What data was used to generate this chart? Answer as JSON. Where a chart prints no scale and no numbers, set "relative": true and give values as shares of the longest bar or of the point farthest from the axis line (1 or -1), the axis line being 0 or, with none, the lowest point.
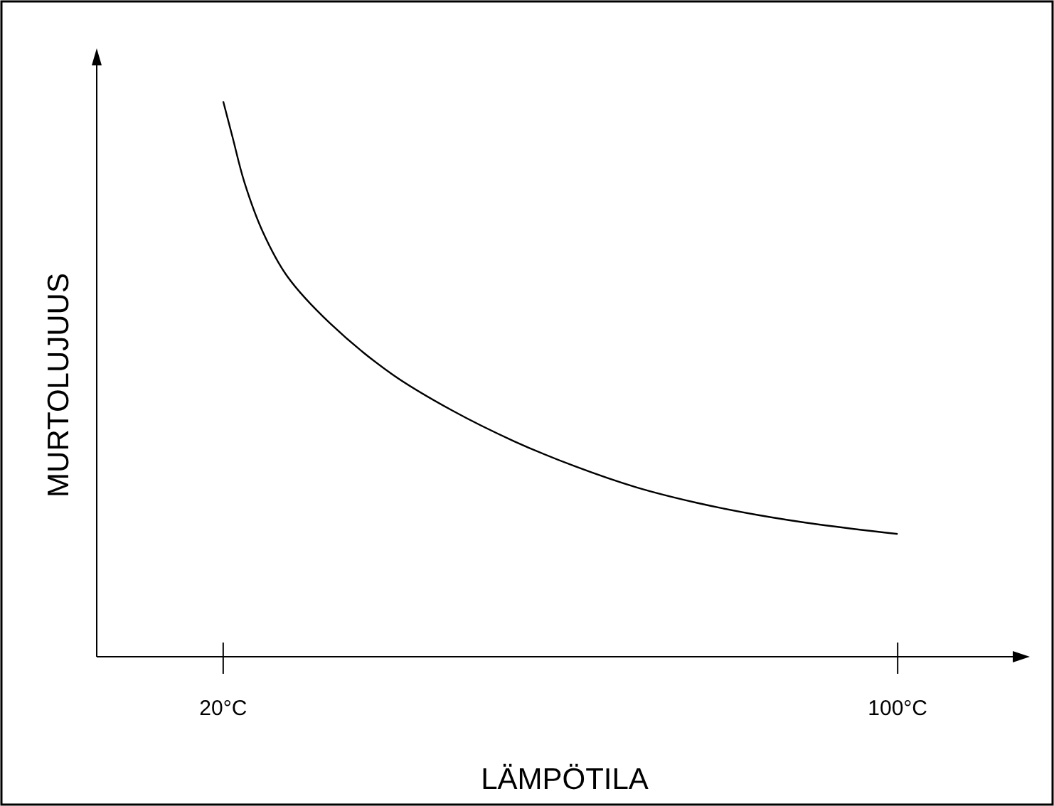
{
  "chart_data": {
    "type": "line",
    "xlabel": "LÄMPÖTILA",
    "ylabel": "MURTOLUJUUS",
    "relative": true,
    "xlim": [
      5,
      115
    ],
    "xticks": [
      {
        "value": 20,
        "label": "20°C"
      },
      {
        "value": 100,
        "label": "100°C"
      }
    ],
    "series": [
      {
        "color": "#000000",
        "x": [
          20,
          21.1,
          22.5,
          24.7,
          27.6,
          32.7,
          40,
          47.2,
          54.5,
          61.7,
          69,
          76.2,
          83.5,
          90.7,
          100
        ],
        "values": [
          1,
          0.936,
          0.855,
          0.765,
          0.685,
          0.6,
          0.509,
          0.443,
          0.388,
          0.343,
          0.305,
          0.277,
          0.255,
          0.238,
          0.221
        ]
      }
    ],
    "marker": "none",
    "line_style": "solid",
    "grid": false
  }
}
